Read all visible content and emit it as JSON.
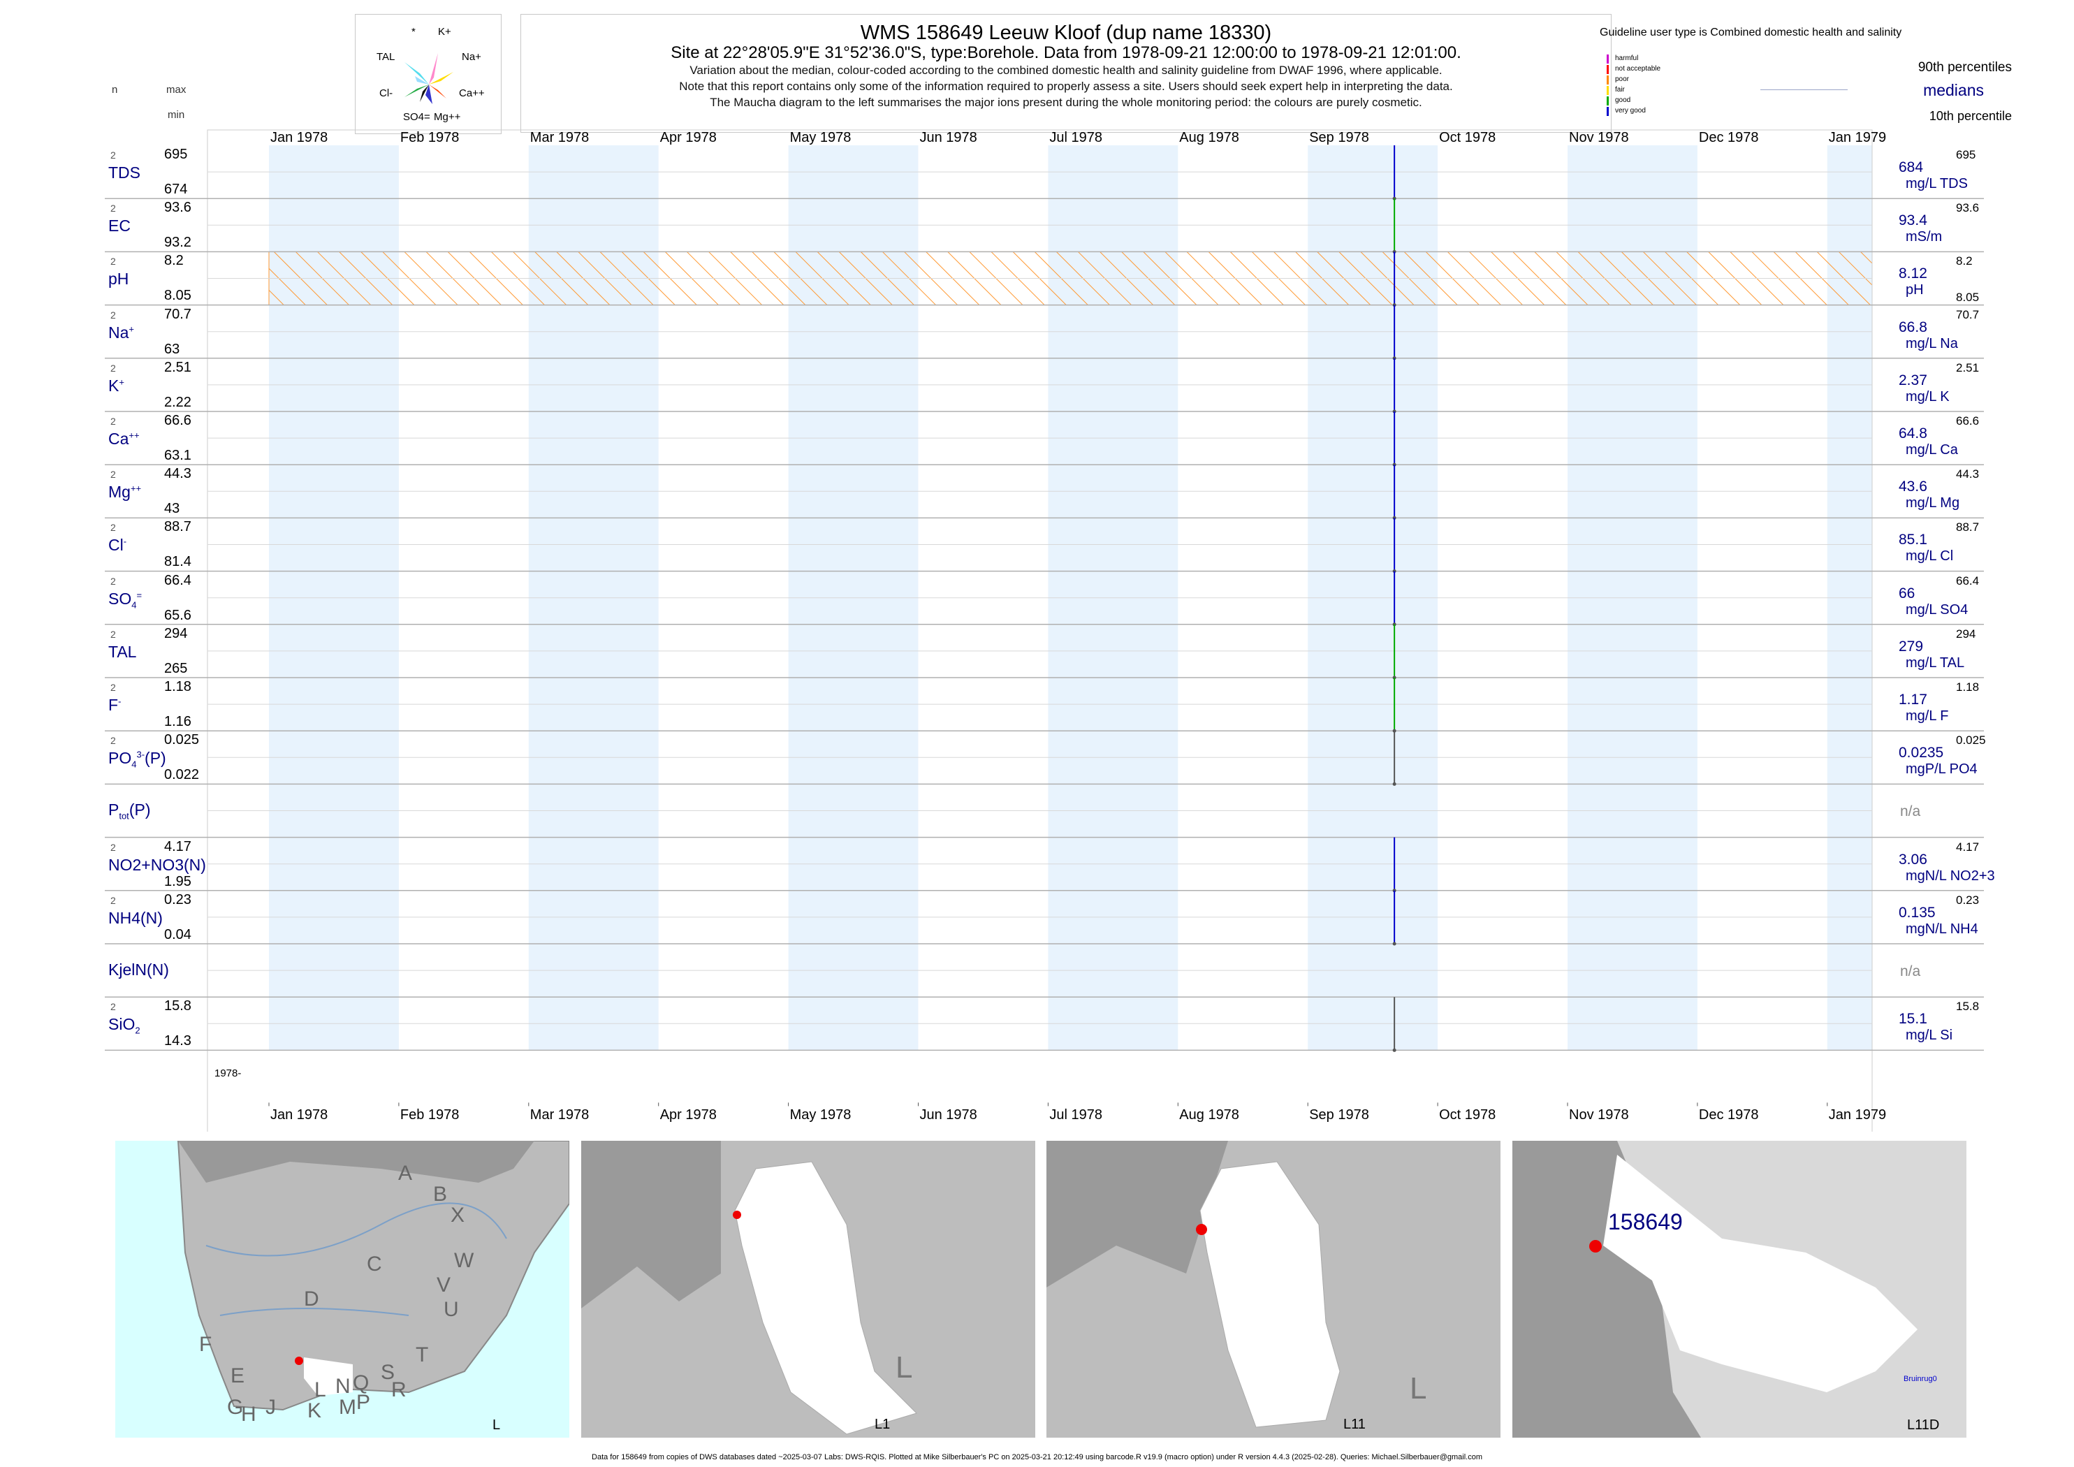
{
  "header": {
    "title": "WMS 158649  Leeuw Kloof (dup name 18330)",
    "subtitle": "Site at 22°28'05.9\"E 31°52'36.0\"S, type:Borehole.  Data from 1978-09-21 12:00:00 to 1978-09-21 12:01:00.",
    "line1": "Variation about the median,  colour-coded according to the combined domestic health and salinity guideline from DWAF 1996, where applicable.",
    "line2": "Note that this report contains only some of the information required to properly assess a site. Users should seek expert help in interpreting the data.",
    "line3": "The Maucha diagram to the left summarises the major ions present during the whole monitoring period: the colours are purely cosmetic."
  },
  "maucha": {
    "labels": [
      "*",
      "K+",
      "TAL",
      "Na+",
      "Cl-",
      "Ca++",
      "SO4=",
      "Mg++"
    ]
  },
  "legend": {
    "guideline": "Guideline user type is Combined domestic health and salinity",
    "classes": [
      {
        "name": "harmful",
        "color": "#cc00cc"
      },
      {
        "name": "not acceptable",
        "color": "#ff0000"
      },
      {
        "name": "poor",
        "color": "#ff8800"
      },
      {
        "name": "fair",
        "color": "#ffdd00"
      },
      {
        "name": "good",
        "color": "#00aa00"
      },
      {
        "name": "very good",
        "color": "#0000cc"
      }
    ],
    "p90": "90th percentiles",
    "medians": "medians",
    "p10": "10th percentile"
  },
  "colheads": {
    "n": "n",
    "max": "max",
    "min": "min"
  },
  "axis": {
    "months": [
      "Jan 1978",
      "Feb 1978",
      "Mar 1978",
      "Apr 1978",
      "May 1978",
      "Jun 1978",
      "Jul 1978",
      "Aug 1978",
      "Sep 1978",
      "Oct 1978",
      "Nov 1978",
      "Dec 1978",
      "Jan 1979"
    ],
    "year_label": "1978-"
  },
  "chart_data": {
    "type": "line",
    "title": "WMS 158649  Leeuw Kloof (dup name 18330)",
    "x_range": [
      "1978-01-01",
      "1979-01-01"
    ],
    "sample_date": "1978-09-21",
    "rows": [
      {
        "label": "TDS",
        "n": "2",
        "max": "695",
        "min": "674",
        "median": "684",
        "unit": "mg/L TDS",
        "rmax": "695",
        "rmin": "",
        "color": "#0000cc"
      },
      {
        "label": "EC",
        "n": "2",
        "max": "93.6",
        "min": "93.2",
        "median": "93.4",
        "unit": "mS/m",
        "rmax": "93.6",
        "rmin": "",
        "color": "#00aa00"
      },
      {
        "label": "pH",
        "n": "2",
        "max": "8.2",
        "min": "8.05",
        "median": "8.12",
        "unit": "pH",
        "rmax": "8.2",
        "rmin": "8.05",
        "color": "#0000cc",
        "guideline_band": true
      },
      {
        "label": "Na",
        "sup": "+",
        "n": "2",
        "max": "70.7",
        "min": "63",
        "median": "66.8",
        "unit": "mg/L Na",
        "rmax": "70.7",
        "rmin": "",
        "color": "#0000cc"
      },
      {
        "label": "K",
        "sup": "+",
        "n": "2",
        "max": "2.51",
        "min": "2.22",
        "median": "2.37",
        "unit": "mg/L K",
        "rmax": "2.51",
        "rmin": "",
        "color": "#0000cc"
      },
      {
        "label": "Ca",
        "sup": "++",
        "n": "2",
        "max": "66.6",
        "min": "63.1",
        "median": "64.8",
        "unit": "mg/L Ca",
        "rmax": "66.6",
        "rmin": "",
        "color": "#0000cc"
      },
      {
        "label": "Mg",
        "sup": "++",
        "n": "2",
        "max": "44.3",
        "min": "43",
        "median": "43.6",
        "unit": "mg/L Mg",
        "rmax": "44.3",
        "rmin": "",
        "color": "#0000cc"
      },
      {
        "label": "Cl",
        "sup": "-",
        "n": "2",
        "max": "88.7",
        "min": "81.4",
        "median": "85.1",
        "unit": "mg/L Cl",
        "rmax": "88.7",
        "rmin": "",
        "color": "#0000cc"
      },
      {
        "label": "SO",
        "sub": "4",
        "sup": "=",
        "n": "2",
        "max": "66.4",
        "min": "65.6",
        "median": "66",
        "unit": "mg/L SO4",
        "rmax": "66.4",
        "rmin": "",
        "color": "#0000cc"
      },
      {
        "label": "TAL",
        "n": "2",
        "max": "294",
        "min": "265",
        "median": "279",
        "unit": "mg/L TAL",
        "rmax": "294",
        "rmin": "",
        "color": "#00aa00"
      },
      {
        "label": "F",
        "sup": "-",
        "n": "2",
        "max": "1.18",
        "min": "1.16",
        "median": "1.17",
        "unit": "mg/L F",
        "rmax": "1.18",
        "rmin": "",
        "color": "#00aa00"
      },
      {
        "label": "PO",
        "sub": "4",
        "sup": "3-",
        "suffix": "(P)",
        "n": "2",
        "max": "0.025",
        "min": "0.022",
        "median": "0.0235",
        "unit": "mgP/L PO4",
        "rmax": "0.025",
        "rmin": "",
        "color": "#555555"
      },
      {
        "label": "P",
        "sub": "tot",
        "suffix": "(P)",
        "n": "",
        "max": "",
        "min": "",
        "median": "n/a",
        "unit": "",
        "rmax": "",
        "rmin": "",
        "color": ""
      },
      {
        "label": "NO2+NO3(N)",
        "n": "2",
        "max": "4.17",
        "min": "1.95",
        "median": "3.06",
        "unit": "mgN/L NO2+3",
        "rmax": "4.17",
        "rmin": "",
        "color": "#0000cc"
      },
      {
        "label": "NH4(N)",
        "n": "2",
        "max": "0.23",
        "min": "0.04",
        "median": "0.135",
        "unit": "mgN/L NH4",
        "rmax": "0.23",
        "rmin": "",
        "color": "#0000cc"
      },
      {
        "label": "KjelN(N)",
        "n": "",
        "max": "",
        "min": "",
        "median": "n/a",
        "unit": "",
        "rmax": "",
        "rmin": "",
        "color": ""
      },
      {
        "label": "SiO",
        "sub": "2",
        "n": "2",
        "max": "15.8",
        "min": "14.3",
        "median": "15.1",
        "unit": "mg/L Si",
        "rmax": "15.8",
        "rmin": "",
        "color": "#555555"
      }
    ]
  },
  "maps": [
    {
      "corner_label": "L",
      "letters": [
        "A",
        "B",
        "X",
        "W",
        "C",
        "V",
        "U",
        "D",
        "T",
        "F",
        "E",
        "S",
        "R",
        "G",
        "H",
        "J",
        "L",
        "N",
        "Q",
        "P",
        "K",
        "M"
      ]
    },
    {
      "corner_label": "L1",
      "big_label": "L"
    },
    {
      "corner_label": "L11",
      "big_label": "L"
    },
    {
      "corner_label": "L11D",
      "site_label": "158649",
      "place_label": "Bruinrug0"
    }
  ],
  "footer": "Data for 158649 from copies of DWS databases dated ~2025-03-07 Labs: DWS-RQIS. Plotted at Mike Silberbauer's PC on 2025-03-21 20:12:49 using barcode.R v19.9 (macro option) under R version 4.4.3 (2025-02-28). Queries: Michael.Silberbauer@gmail.com"
}
